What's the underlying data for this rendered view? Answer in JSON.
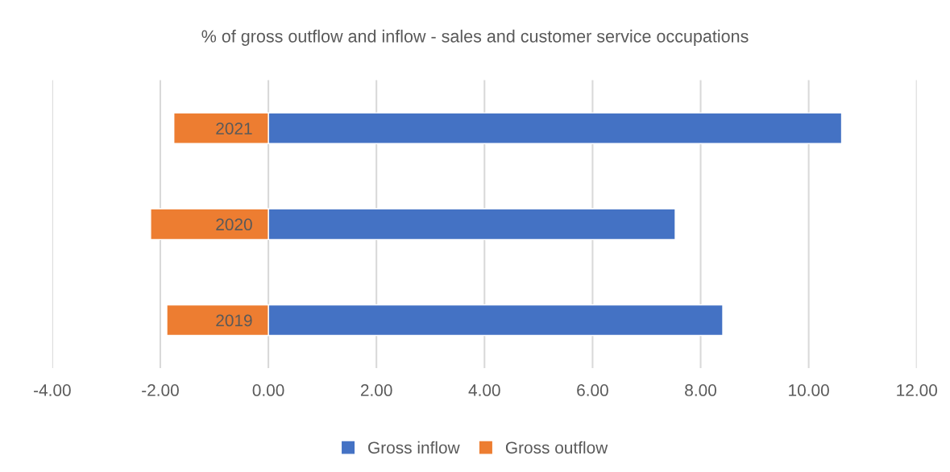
{
  "chart_data": {
    "type": "bar",
    "orientation": "horizontal",
    "title": "% of gross outflow and inflow - sales and customer service occupations",
    "categories": [
      "2021",
      "2020",
      "2019"
    ],
    "series": [
      {
        "name": "Gross inflow",
        "color": "#4472c4",
        "values": [
          10.61,
          7.53,
          8.41
        ]
      },
      {
        "name": "Gross outflow",
        "color": "#ed7d31",
        "values": [
          -1.75,
          -2.18,
          -1.88
        ]
      }
    ],
    "xlim": [
      -4,
      12
    ],
    "xticks": [
      {
        "value": -4,
        "label": "-4.00"
      },
      {
        "value": -2,
        "label": "-2.00"
      },
      {
        "value": 0,
        "label": "0.00"
      },
      {
        "value": 2,
        "label": "2.00"
      },
      {
        "value": 4,
        "label": "4.00"
      },
      {
        "value": 6,
        "label": "6.00"
      },
      {
        "value": 8,
        "label": "8.00"
      },
      {
        "value": 10,
        "label": "10.00"
      },
      {
        "value": 12,
        "label": "12.00"
      }
    ],
    "stacked": true,
    "grid": "x",
    "legend": "bottom"
  }
}
